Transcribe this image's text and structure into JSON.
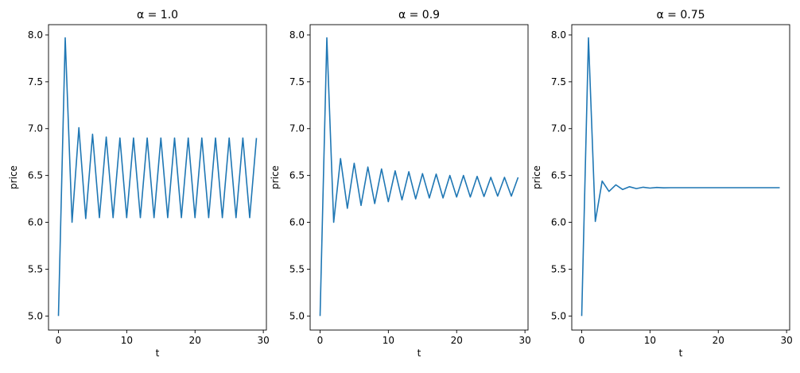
{
  "chart_data": [
    {
      "type": "line",
      "title": "α = 1.0",
      "xlabel": "t",
      "ylabel": "price",
      "xlim": [
        -1.45,
        30.45
      ],
      "ylim": [
        4.85,
        8.11
      ],
      "xticks": [
        0,
        10,
        20,
        30
      ],
      "yticks": [
        5.0,
        5.5,
        6.0,
        6.5,
        7.0,
        7.5,
        8.0
      ],
      "grid": false,
      "color": "#1f77b4",
      "x": [
        0,
        1,
        2,
        3,
        4,
        5,
        6,
        7,
        8,
        9,
        10,
        11,
        12,
        13,
        14,
        15,
        16,
        17,
        18,
        19,
        20,
        21,
        22,
        23,
        24,
        25,
        26,
        27,
        28,
        29
      ],
      "y": [
        5.0,
        7.97,
        6.0,
        7.01,
        6.04,
        6.94,
        6.05,
        6.91,
        6.05,
        6.9,
        6.05,
        6.9,
        6.05,
        6.9,
        6.05,
        6.9,
        6.05,
        6.9,
        6.05,
        6.9,
        6.05,
        6.9,
        6.05,
        6.9,
        6.05,
        6.9,
        6.05,
        6.9,
        6.05,
        6.9
      ]
    },
    {
      "type": "line",
      "title": "α = 0.9",
      "xlabel": "t",
      "ylabel": "price",
      "xlim": [
        -1.45,
        30.45
      ],
      "ylim": [
        4.85,
        8.11
      ],
      "xticks": [
        0,
        10,
        20,
        30
      ],
      "yticks": [
        5.0,
        5.5,
        6.0,
        6.5,
        7.0,
        7.5,
        8.0
      ],
      "grid": false,
      "color": "#1f77b4",
      "x": [
        0,
        1,
        2,
        3,
        4,
        5,
        6,
        7,
        8,
        9,
        10,
        11,
        12,
        13,
        14,
        15,
        16,
        17,
        18,
        19,
        20,
        21,
        22,
        23,
        24,
        25,
        26,
        27,
        28,
        29
      ],
      "y": [
        5.0,
        7.97,
        6.0,
        6.68,
        6.15,
        6.63,
        6.18,
        6.59,
        6.2,
        6.57,
        6.22,
        6.55,
        6.24,
        6.54,
        6.25,
        6.52,
        6.26,
        6.515,
        6.26,
        6.5,
        6.27,
        6.5,
        6.27,
        6.49,
        6.275,
        6.48,
        6.28,
        6.48,
        6.28,
        6.48
      ]
    },
    {
      "type": "line",
      "title": "α = 0.75",
      "xlabel": "t",
      "ylabel": "price",
      "xlim": [
        -1.45,
        30.45
      ],
      "ylim": [
        4.85,
        8.11
      ],
      "xticks": [
        0,
        10,
        20,
        30
      ],
      "yticks": [
        5.0,
        5.5,
        6.0,
        6.5,
        7.0,
        7.5,
        8.0
      ],
      "grid": false,
      "color": "#1f77b4",
      "x": [
        0,
        1,
        2,
        3,
        4,
        5,
        6,
        7,
        8,
        9,
        10,
        11,
        12,
        13,
        14,
        15,
        16,
        17,
        18,
        19,
        20,
        21,
        22,
        23,
        24,
        25,
        26,
        27,
        28,
        29
      ],
      "y": [
        5.0,
        7.97,
        6.01,
        6.44,
        6.33,
        6.4,
        6.35,
        6.38,
        6.36,
        6.375,
        6.365,
        6.372,
        6.368,
        6.37,
        6.37,
        6.37,
        6.37,
        6.37,
        6.37,
        6.37,
        6.37,
        6.37,
        6.37,
        6.37,
        6.37,
        6.37,
        6.37,
        6.37,
        6.37,
        6.37
      ]
    }
  ]
}
